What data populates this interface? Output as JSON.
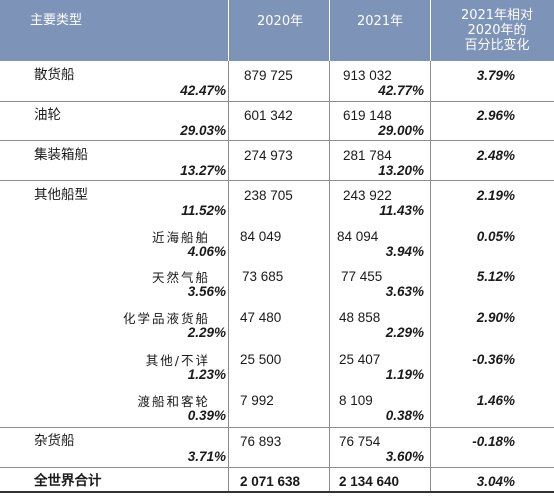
{
  "header": {
    "type_label": "主要类型",
    "y2020": "2020年",
    "y2021": "2021年",
    "change_l1": "2021年相对",
    "change_l2": "2020年的",
    "change_l3": "百分比变化"
  },
  "rows": [
    {
      "name": "散货船",
      "v2020": "879 725",
      "p2020": "42.47%",
      "v2021": "913 032",
      "p2021": "42.77%",
      "change": "3.79%"
    },
    {
      "name": "油轮",
      "v2020": "601 342",
      "p2020": "29.03%",
      "v2021": "619 148",
      "p2021": "29.00%",
      "change": "2.96%"
    },
    {
      "name": "集装箱船",
      "v2020": "274 973",
      "p2020": "13.27%",
      "v2021": "281 784",
      "p2021": "13.20%",
      "change": "2.48%"
    },
    {
      "name": "其他船型",
      "v2020": "238 705",
      "p2020": "11.52%",
      "v2021": "243 922",
      "p2021": "11.43%",
      "change": "2.19%"
    },
    {
      "name": "近海船舶",
      "v2020": "84 049",
      "p2020": "4.06%",
      "v2021": "84 094",
      "p2021": "3.94%",
      "change": "0.05%"
    },
    {
      "name": "天然气船",
      "v2020": "73 685",
      "p2020": "3.56%",
      "v2021": "77 455",
      "p2021": "3.63%",
      "change": "5.12%"
    },
    {
      "name": "化学品液货船",
      "v2020": "47 480",
      "p2020": "2.29%",
      "v2021": "48 858",
      "p2021": "2.29%",
      "change": "2.90%"
    },
    {
      "name": "其他/不详",
      "v2020": "25 500",
      "p2020": "1.23%",
      "v2021": "25 407",
      "p2021": "1.19%",
      "change": "-0.36%"
    },
    {
      "name": "渡船和客轮",
      "v2020": "7 992",
      "p2020": "0.39%",
      "v2021": "8 109",
      "p2021": "0.38%",
      "change": "1.46%"
    },
    {
      "name": "杂货船",
      "v2020": "76 893",
      "p2020": "3.71%",
      "v2021": "76 754",
      "p2021": "3.60%",
      "change": "-0.18%"
    }
  ],
  "total": {
    "name": "全世界合计",
    "v2020": "2 071 638",
    "v2021": "2 134 640",
    "change": "3.04%"
  },
  "colors": {
    "header_bg": "#7d93b8",
    "header_text": "#ffffff",
    "rule": "#8c8c8c"
  }
}
